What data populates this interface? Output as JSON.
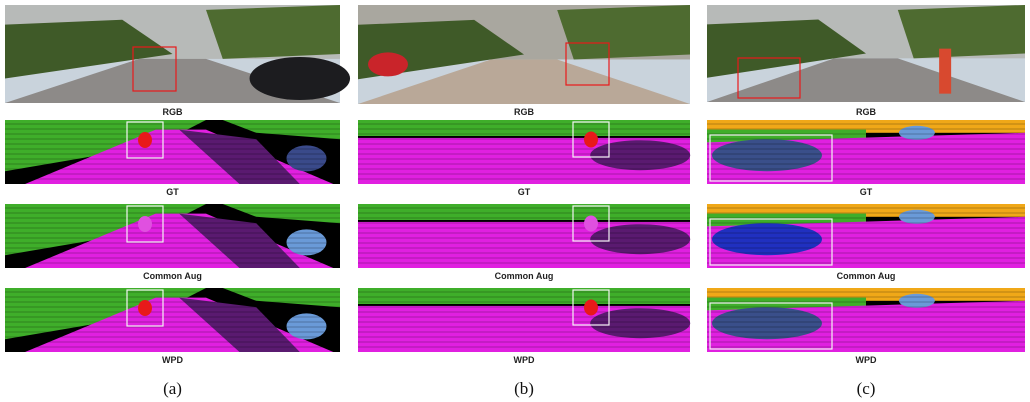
{
  "columns": [
    {
      "panels": [
        "RGB",
        "GT",
        "Common Aug",
        "WPD"
      ],
      "label": "(a)"
    },
    {
      "panels": [
        "RGB",
        "GT",
        "Common Aug",
        "WPD"
      ],
      "label": "(b)"
    },
    {
      "panels": [
        "RGB",
        "GT",
        "Common Aug",
        "WPD"
      ],
      "label": "(c)"
    }
  ]
}
